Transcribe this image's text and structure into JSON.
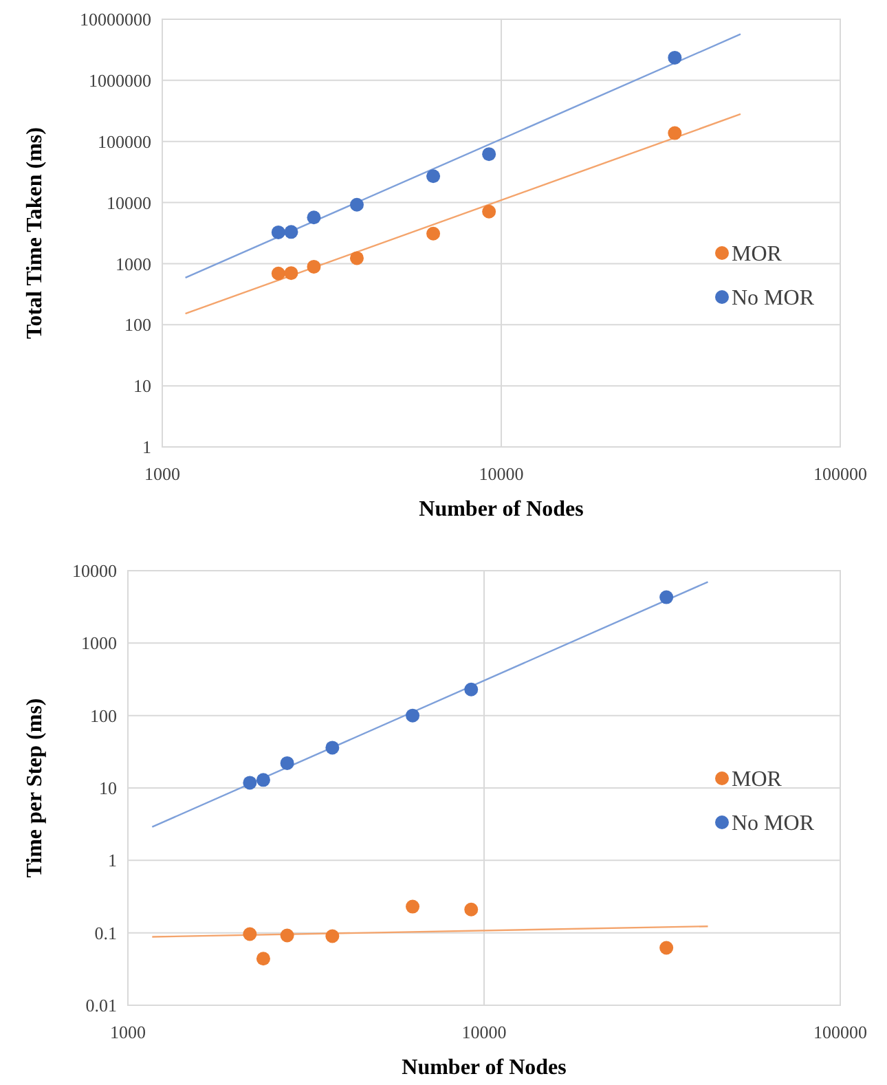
{
  "chart_data": [
    {
      "type": "scatter",
      "xlabel": "Number of Nodes",
      "ylabel": "Total Time Taken (ms)",
      "log": "xy",
      "grid": true,
      "legend": "right",
      "line_style": "solid",
      "xlim": [
        1000,
        100000
      ],
      "xticks": [
        1000,
        10000,
        100000
      ],
      "ylim": [
        1,
        10000000
      ],
      "yticks": [
        1,
        10,
        100,
        1000,
        10000,
        100000,
        1000000,
        10000000
      ],
      "series": [
        {
          "name": "MOR",
          "marker": "circle",
          "color": "#ed7d31",
          "x": [
            2200,
            2400,
            2800,
            3750,
            6300,
            9200,
            32500
          ],
          "values": [
            690,
            700,
            890,
            1230,
            3100,
            7100,
            137000
          ]
        },
        {
          "name": "No MOR",
          "marker": "circle",
          "color": "#4472c4",
          "x": [
            2200,
            2400,
            2800,
            3750,
            6300,
            9200,
            32500
          ],
          "values": [
            3250,
            3300,
            5700,
            9200,
            27000,
            62000,
            2350000
          ]
        },
        {
          "type": "line",
          "marker": "none",
          "color": "#f4a46c",
          "x": [
            1170,
            50800
          ],
          "values": [
            152,
            280000
          ]
        },
        {
          "type": "line",
          "marker": "none",
          "color": "#7ea0da",
          "x": [
            1170,
            50800
          ],
          "values": [
            590,
            5700000
          ]
        }
      ]
    },
    {
      "type": "scatter",
      "xlabel": "Number of Nodes",
      "ylabel": "Time per Step (ms)",
      "log": "xy",
      "grid": true,
      "legend": "right",
      "line_style": "solid",
      "xlim": [
        1000,
        100000
      ],
      "xticks": [
        1000,
        10000,
        100000
      ],
      "ylim": [
        0.01,
        10000
      ],
      "yticks": [
        0.01,
        0.1,
        1,
        10,
        100,
        1000,
        10000
      ],
      "series": [
        {
          "name": "MOR",
          "marker": "circle",
          "color": "#ed7d31",
          "x": [
            2200,
            2400,
            2800,
            3750,
            6300,
            9200,
            32500
          ],
          "values": [
            0.096,
            0.044,
            0.092,
            0.09,
            0.23,
            0.21,
            0.062
          ]
        },
        {
          "name": "No MOR",
          "marker": "circle",
          "color": "#4472c4",
          "x": [
            2200,
            2400,
            2800,
            3750,
            6300,
            9200,
            32500
          ],
          "values": [
            11.8,
            12.9,
            22,
            36,
            100,
            229,
            4300
          ]
        },
        {
          "type": "line",
          "marker": "none",
          "color": "#f4a46c",
          "x": [
            1170,
            42500
          ],
          "values": [
            0.088,
            0.123
          ]
        },
        {
          "type": "line",
          "marker": "none",
          "color": "#7ea0da",
          "x": [
            1170,
            42500
          ],
          "values": [
            2.9,
            7000
          ]
        }
      ]
    }
  ]
}
